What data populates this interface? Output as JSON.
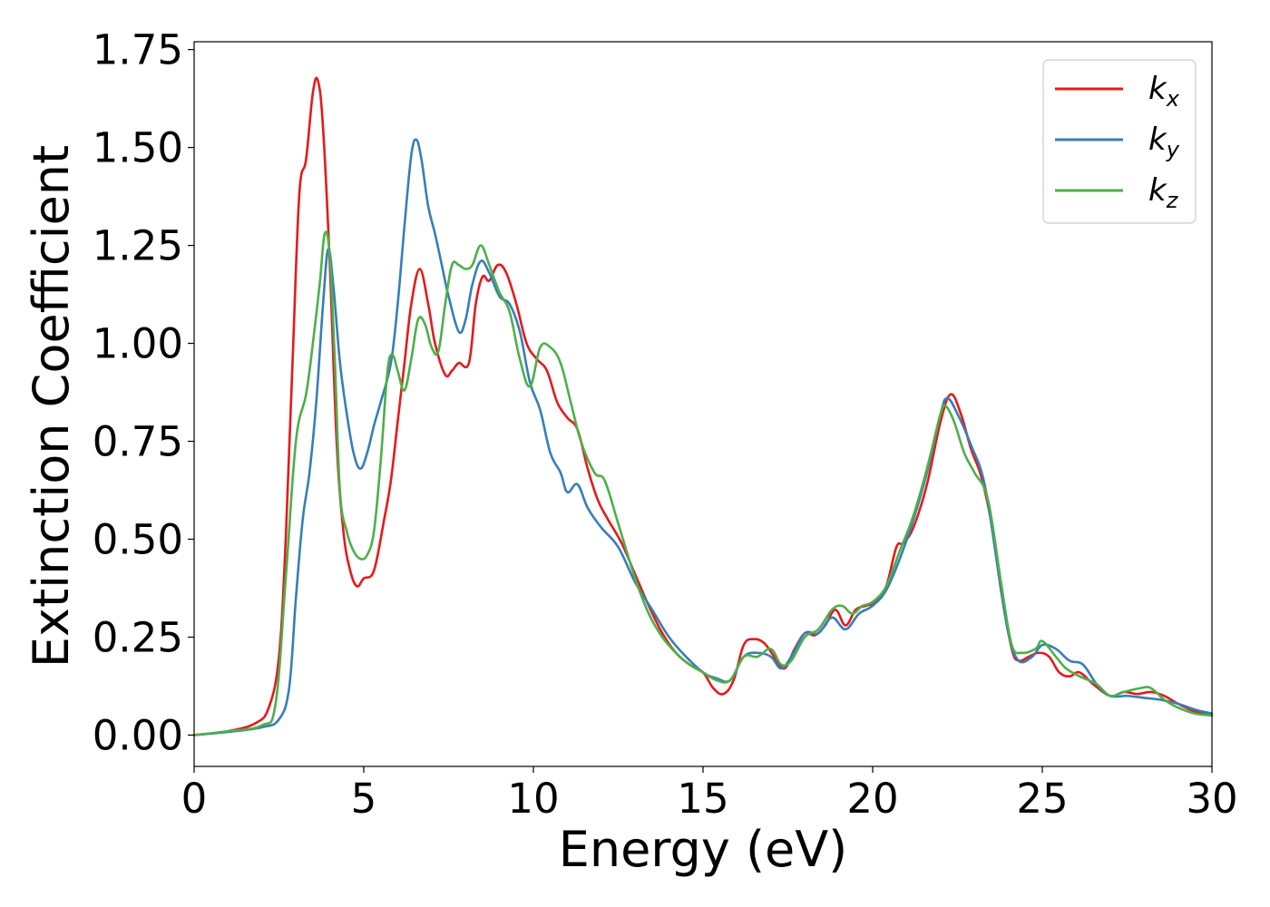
{
  "chart_data": {
    "type": "line",
    "title": "",
    "xlabel": "Energy (eV)",
    "ylabel": "Extinction Coefficient",
    "xlim": [
      0,
      30
    ],
    "ylim": [
      -0.08,
      1.77
    ],
    "xticks": [
      "0",
      "5",
      "10",
      "15",
      "20",
      "25",
      "30"
    ],
    "yticks": [
      "0.00",
      "0.25",
      "0.50",
      "0.75",
      "1.00",
      "1.25",
      "1.50",
      "1.75"
    ],
    "grid": false,
    "legend_position": "top-right",
    "series": [
      {
        "name": "k",
        "subscript": "x",
        "color": "#e41a1c",
        "points": [
          [
            0,
            0
          ],
          [
            1,
            0.01
          ],
          [
            1.8,
            0.03
          ],
          [
            2.2,
            0.07
          ],
          [
            2.5,
            0.2
          ],
          [
            2.7,
            0.5
          ],
          [
            2.9,
            0.95
          ],
          [
            3.1,
            1.38
          ],
          [
            3.3,
            1.47
          ],
          [
            3.5,
            1.64
          ],
          [
            3.65,
            1.67
          ],
          [
            3.8,
            1.55
          ],
          [
            4.0,
            1.2
          ],
          [
            4.2,
            0.75
          ],
          [
            4.4,
            0.52
          ],
          [
            4.6,
            0.42
          ],
          [
            4.8,
            0.38
          ],
          [
            5.0,
            0.4
          ],
          [
            5.3,
            0.42
          ],
          [
            5.6,
            0.55
          ],
          [
            5.8,
            0.65
          ],
          [
            6.0,
            0.8
          ],
          [
            6.2,
            0.95
          ],
          [
            6.4,
            1.1
          ],
          [
            6.65,
            1.19
          ],
          [
            6.9,
            1.1
          ],
          [
            7.1,
            1.0
          ],
          [
            7.4,
            0.92
          ],
          [
            7.6,
            0.93
          ],
          [
            7.8,
            0.95
          ],
          [
            8.1,
            0.95
          ],
          [
            8.3,
            1.1
          ],
          [
            8.5,
            1.17
          ],
          [
            8.7,
            1.16
          ],
          [
            8.95,
            1.2
          ],
          [
            9.2,
            1.18
          ],
          [
            9.5,
            1.1
          ],
          [
            9.8,
            1.0
          ],
          [
            10.1,
            0.96
          ],
          [
            10.4,
            0.93
          ],
          [
            10.7,
            0.85
          ],
          [
            11.0,
            0.81
          ],
          [
            11.3,
            0.78
          ],
          [
            11.6,
            0.68
          ],
          [
            11.9,
            0.6
          ],
          [
            12.2,
            0.55
          ],
          [
            12.6,
            0.49
          ],
          [
            13.0,
            0.41
          ],
          [
            13.4,
            0.33
          ],
          [
            13.8,
            0.26
          ],
          [
            14.2,
            0.21
          ],
          [
            14.6,
            0.18
          ],
          [
            15.0,
            0.16
          ],
          [
            15.3,
            0.12
          ],
          [
            15.6,
            0.105
          ],
          [
            15.9,
            0.14
          ],
          [
            16.2,
            0.23
          ],
          [
            16.5,
            0.245
          ],
          [
            16.8,
            0.235
          ],
          [
            17.1,
            0.2
          ],
          [
            17.4,
            0.17
          ],
          [
            17.7,
            0.22
          ],
          [
            18.0,
            0.26
          ],
          [
            18.3,
            0.255
          ],
          [
            18.6,
            0.28
          ],
          [
            18.9,
            0.32
          ],
          [
            19.2,
            0.28
          ],
          [
            19.5,
            0.32
          ],
          [
            19.8,
            0.33
          ],
          [
            20.1,
            0.34
          ],
          [
            20.4,
            0.38
          ],
          [
            20.7,
            0.48
          ],
          [
            20.9,
            0.49
          ],
          [
            21.2,
            0.53
          ],
          [
            21.6,
            0.64
          ],
          [
            22.0,
            0.8
          ],
          [
            22.3,
            0.87
          ],
          [
            22.6,
            0.82
          ],
          [
            22.9,
            0.73
          ],
          [
            23.2,
            0.66
          ],
          [
            23.5,
            0.54
          ],
          [
            23.8,
            0.36
          ],
          [
            24.1,
            0.22
          ],
          [
            24.3,
            0.19
          ],
          [
            24.6,
            0.2
          ],
          [
            24.9,
            0.21
          ],
          [
            25.2,
            0.2
          ],
          [
            25.5,
            0.16
          ],
          [
            25.8,
            0.15
          ],
          [
            26.1,
            0.16
          ],
          [
            26.5,
            0.13
          ],
          [
            27.0,
            0.1
          ],
          [
            27.4,
            0.11
          ],
          [
            27.8,
            0.105
          ],
          [
            28.2,
            0.11
          ],
          [
            28.6,
            0.1
          ],
          [
            29.0,
            0.08
          ],
          [
            29.5,
            0.06
          ],
          [
            30,
            0.05
          ]
        ]
      },
      {
        "name": "k",
        "subscript": "y",
        "color": "#377eb8",
        "points": [
          [
            0,
            0
          ],
          [
            1,
            0.008
          ],
          [
            2,
            0.02
          ],
          [
            2.5,
            0.04
          ],
          [
            2.8,
            0.12
          ],
          [
            3.0,
            0.35
          ],
          [
            3.2,
            0.55
          ],
          [
            3.4,
            0.67
          ],
          [
            3.6,
            0.85
          ],
          [
            3.8,
            1.1
          ],
          [
            3.95,
            1.24
          ],
          [
            4.1,
            1.15
          ],
          [
            4.3,
            0.95
          ],
          [
            4.5,
            0.82
          ],
          [
            4.7,
            0.72
          ],
          [
            4.9,
            0.68
          ],
          [
            5.1,
            0.72
          ],
          [
            5.3,
            0.79
          ],
          [
            5.5,
            0.85
          ],
          [
            5.8,
            0.95
          ],
          [
            6.0,
            1.1
          ],
          [
            6.2,
            1.3
          ],
          [
            6.4,
            1.48
          ],
          [
            6.55,
            1.52
          ],
          [
            6.7,
            1.47
          ],
          [
            6.9,
            1.35
          ],
          [
            7.1,
            1.28
          ],
          [
            7.3,
            1.2
          ],
          [
            7.5,
            1.12
          ],
          [
            7.8,
            1.03
          ],
          [
            8.0,
            1.06
          ],
          [
            8.2,
            1.15
          ],
          [
            8.45,
            1.21
          ],
          [
            8.7,
            1.18
          ],
          [
            9.0,
            1.12
          ],
          [
            9.3,
            1.1
          ],
          [
            9.6,
            1.03
          ],
          [
            9.9,
            0.9
          ],
          [
            10.2,
            0.83
          ],
          [
            10.5,
            0.72
          ],
          [
            10.8,
            0.67
          ],
          [
            11.0,
            0.62
          ],
          [
            11.3,
            0.64
          ],
          [
            11.6,
            0.58
          ],
          [
            12.0,
            0.53
          ],
          [
            12.5,
            0.48
          ],
          [
            13.0,
            0.39
          ],
          [
            13.5,
            0.32
          ],
          [
            14.0,
            0.25
          ],
          [
            14.5,
            0.2
          ],
          [
            15.0,
            0.16
          ],
          [
            15.4,
            0.145
          ],
          [
            15.8,
            0.14
          ],
          [
            16.2,
            0.2
          ],
          [
            16.6,
            0.21
          ],
          [
            17.0,
            0.2
          ],
          [
            17.3,
            0.17
          ],
          [
            17.6,
            0.2
          ],
          [
            18.0,
            0.26
          ],
          [
            18.4,
            0.26
          ],
          [
            18.8,
            0.3
          ],
          [
            19.2,
            0.27
          ],
          [
            19.6,
            0.31
          ],
          [
            20.0,
            0.33
          ],
          [
            20.4,
            0.37
          ],
          [
            20.8,
            0.45
          ],
          [
            21.2,
            0.55
          ],
          [
            21.6,
            0.67
          ],
          [
            22.0,
            0.82
          ],
          [
            22.2,
            0.86
          ],
          [
            22.5,
            0.82
          ],
          [
            22.9,
            0.74
          ],
          [
            23.3,
            0.64
          ],
          [
            23.7,
            0.42
          ],
          [
            24.0,
            0.26
          ],
          [
            24.3,
            0.19
          ],
          [
            24.7,
            0.2
          ],
          [
            25.0,
            0.23
          ],
          [
            25.4,
            0.22
          ],
          [
            25.8,
            0.19
          ],
          [
            26.2,
            0.18
          ],
          [
            26.6,
            0.13
          ],
          [
            27.0,
            0.1
          ],
          [
            27.5,
            0.1
          ],
          [
            28.0,
            0.095
          ],
          [
            28.5,
            0.09
          ],
          [
            29.0,
            0.08
          ],
          [
            29.5,
            0.065
          ],
          [
            30,
            0.055
          ]
        ]
      },
      {
        "name": "k",
        "subscript": "z",
        "color": "#4daf4a",
        "points": [
          [
            0,
            0
          ],
          [
            1,
            0.01
          ],
          [
            2,
            0.025
          ],
          [
            2.4,
            0.08
          ],
          [
            2.7,
            0.4
          ],
          [
            3.0,
            0.75
          ],
          [
            3.3,
            0.87
          ],
          [
            3.5,
            1.0
          ],
          [
            3.7,
            1.15
          ],
          [
            3.85,
            1.28
          ],
          [
            4.0,
            1.22
          ],
          [
            4.15,
            0.95
          ],
          [
            4.3,
            0.62
          ],
          [
            4.5,
            0.52
          ],
          [
            4.7,
            0.47
          ],
          [
            4.9,
            0.45
          ],
          [
            5.1,
            0.46
          ],
          [
            5.3,
            0.52
          ],
          [
            5.5,
            0.7
          ],
          [
            5.7,
            0.93
          ],
          [
            5.85,
            0.97
          ],
          [
            6.0,
            0.93
          ],
          [
            6.2,
            0.88
          ],
          [
            6.4,
            0.96
          ],
          [
            6.6,
            1.06
          ],
          [
            6.8,
            1.05
          ],
          [
            7.0,
            0.99
          ],
          [
            7.2,
            0.98
          ],
          [
            7.4,
            1.1
          ],
          [
            7.6,
            1.2
          ],
          [
            7.8,
            1.2
          ],
          [
            8.0,
            1.19
          ],
          [
            8.2,
            1.2
          ],
          [
            8.45,
            1.25
          ],
          [
            8.7,
            1.2
          ],
          [
            9.0,
            1.13
          ],
          [
            9.3,
            1.08
          ],
          [
            9.6,
            0.96
          ],
          [
            9.9,
            0.89
          ],
          [
            10.2,
            0.99
          ],
          [
            10.5,
            0.99
          ],
          [
            10.8,
            0.95
          ],
          [
            11.1,
            0.85
          ],
          [
            11.4,
            0.75
          ],
          [
            11.8,
            0.67
          ],
          [
            12.1,
            0.65
          ],
          [
            12.5,
            0.54
          ],
          [
            13.0,
            0.4
          ],
          [
            13.4,
            0.31
          ],
          [
            13.8,
            0.25
          ],
          [
            14.2,
            0.21
          ],
          [
            14.6,
            0.18
          ],
          [
            15.0,
            0.16
          ],
          [
            15.4,
            0.14
          ],
          [
            15.8,
            0.14
          ],
          [
            16.2,
            0.2
          ],
          [
            16.6,
            0.2
          ],
          [
            17.0,
            0.22
          ],
          [
            17.3,
            0.18
          ],
          [
            17.6,
            0.19
          ],
          [
            18.0,
            0.25
          ],
          [
            18.4,
            0.27
          ],
          [
            18.8,
            0.32
          ],
          [
            19.1,
            0.33
          ],
          [
            19.4,
            0.31
          ],
          [
            19.7,
            0.33
          ],
          [
            20.0,
            0.34
          ],
          [
            20.4,
            0.38
          ],
          [
            20.8,
            0.47
          ],
          [
            21.2,
            0.56
          ],
          [
            21.6,
            0.68
          ],
          [
            22.0,
            0.82
          ],
          [
            22.15,
            0.84
          ],
          [
            22.4,
            0.8
          ],
          [
            22.7,
            0.72
          ],
          [
            23.0,
            0.67
          ],
          [
            23.4,
            0.6
          ],
          [
            23.8,
            0.38
          ],
          [
            24.1,
            0.23
          ],
          [
            24.4,
            0.21
          ],
          [
            24.8,
            0.22
          ],
          [
            25.0,
            0.24
          ],
          [
            25.4,
            0.2
          ],
          [
            25.7,
            0.17
          ],
          [
            26.1,
            0.15
          ],
          [
            26.6,
            0.13
          ],
          [
            27.0,
            0.1
          ],
          [
            27.4,
            0.11
          ],
          [
            27.9,
            0.12
          ],
          [
            28.2,
            0.12
          ],
          [
            28.6,
            0.09
          ],
          [
            29.0,
            0.07
          ],
          [
            29.5,
            0.055
          ],
          [
            30,
            0.05
          ]
        ]
      }
    ]
  }
}
